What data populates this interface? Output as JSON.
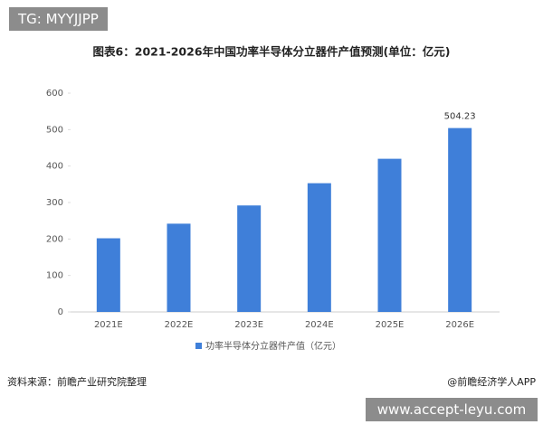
{
  "badge": "TG: MYYJJPP",
  "chart_data": {
    "type": "bar",
    "title": "图表6：2021-2026年中国功率半导体分立器件产值预测(单位：亿元)",
    "categories": [
      "2021E",
      "2022E",
      "2023E",
      "2024E",
      "2025E",
      "2026E"
    ],
    "series": [
      {
        "name": "功率半导体分立器件产值（亿元）",
        "color": "#3f7fd9",
        "values": [
          202,
          242,
          292,
          353,
          420,
          504.23
        ]
      }
    ],
    "value_labels": [
      null,
      null,
      null,
      null,
      null,
      "504.23"
    ],
    "ylim": [
      0,
      600
    ],
    "yticks": [
      0,
      100,
      200,
      300,
      400,
      500,
      600
    ],
    "grid": false
  },
  "source": "资料来源：前瞻产业研究院整理",
  "credit": "@前瞻经济学人APP",
  "website": "www.accept-leyu.com"
}
